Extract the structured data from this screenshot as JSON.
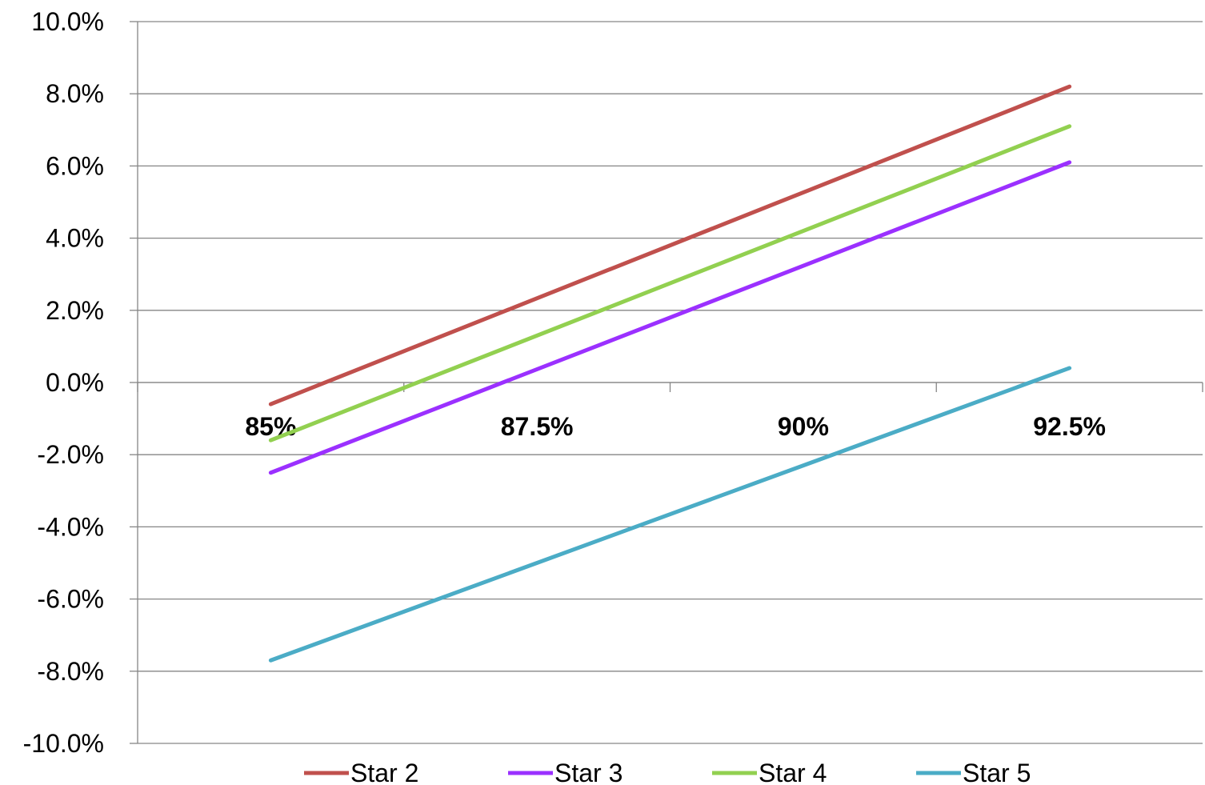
{
  "chart_data": {
    "type": "line",
    "x": [
      "85%",
      "87.5%",
      "90%",
      "92.5%"
    ],
    "series": [
      {
        "name": "Star 2",
        "color": "#C0504D",
        "values": [
          -0.6,
          null,
          null,
          8.2
        ]
      },
      {
        "name": "Star 3",
        "color": "#9B30FF",
        "values": [
          -2.5,
          null,
          null,
          6.1
        ]
      },
      {
        "name": "Star 4",
        "color": "#92D050",
        "values": [
          -1.6,
          null,
          null,
          7.1
        ]
      },
      {
        "name": "Star 5",
        "color": "#4BACC6",
        "values": [
          -7.7,
          null,
          null,
          0.4
        ]
      }
    ],
    "y_tick_labels": [
      "10.0%",
      "8.0%",
      "6.0%",
      "4.0%",
      "2.0%",
      "0.0%",
      "-2.0%",
      "-4.0%",
      "-6.0%",
      "-8.0%",
      "-10.0%"
    ],
    "ylim": [
      -10,
      10
    ],
    "y_unit": "%",
    "grid": "horizontal",
    "legend_position": "bottom"
  }
}
